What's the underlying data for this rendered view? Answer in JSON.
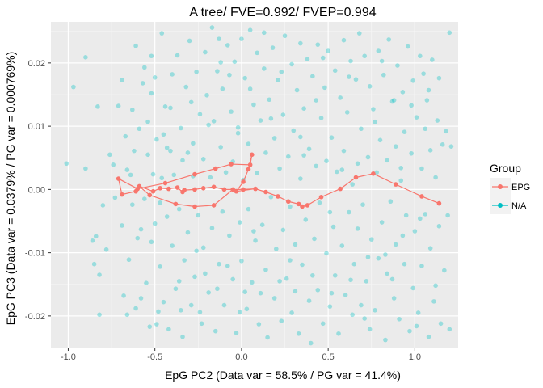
{
  "chart_data": {
    "type": "scatter",
    "title": "A tree/ FVE=0.992/ FVEP=0.994",
    "xlabel": "EpG PC2 (Data var = 58.5% / PG var = 41.4%)",
    "ylabel": "EpG PC3 (Data var = 0.0379% / PG var = 0.000769%)",
    "xlim": [
      -1.1,
      1.25
    ],
    "ylim": [
      -0.025,
      0.0265
    ],
    "x_ticks": [
      -1.0,
      -0.5,
      0.0,
      0.5,
      1.0
    ],
    "x_tick_labels": [
      "-1.0",
      "-0.5",
      "0.0",
      "0.5",
      "1.0"
    ],
    "y_ticks": [
      -0.02,
      -0.01,
      0.0,
      0.01,
      0.02
    ],
    "y_tick_labels": [
      "-0.02",
      "-0.01",
      "0.00",
      "0.01",
      "0.02"
    ],
    "grid": true,
    "legend": {
      "title": "Group",
      "position": "right",
      "entries": [
        {
          "label": "EPG",
          "color": "#F8766D"
        },
        {
          "label": "N/A",
          "color": "#00BFC4"
        }
      ]
    },
    "colors": {
      "EPG": "#F8766D",
      "N/A": "#00BFC4",
      "panel": "#EBEBEB"
    },
    "epg_nodes": [
      [
        -0.71,
        0.0017
      ],
      [
        -0.69,
        -0.0008
      ],
      [
        -0.61,
        -0.0003
      ],
      [
        -0.59,
        0.0005
      ],
      [
        -0.51,
        -0.0003
      ],
      [
        -0.47,
        0.0002
      ],
      [
        -0.42,
        0.0001
      ],
      [
        -0.37,
        0.0003
      ],
      [
        -0.34,
        -0.0004
      ],
      [
        -0.33,
        -0.0001
      ],
      [
        -0.27,
        0.0
      ],
      [
        -0.22,
        0.0002
      ],
      [
        -0.16,
        0.0004
      ],
      [
        -0.1,
        0.0
      ],
      [
        -0.05,
        0.0
      ],
      [
        0.01,
        0.0
      ],
      [
        0.08,
        0.0001
      ],
      [
        0.14,
        -0.0004
      ],
      [
        0.21,
        -0.0011
      ],
      [
        0.27,
        -0.0019
      ],
      [
        0.33,
        -0.0023
      ],
      [
        0.35,
        -0.0027
      ],
      [
        0.38,
        -0.0025
      ],
      [
        0.46,
        -0.0012
      ],
      [
        0.57,
        0.0001
      ],
      [
        0.66,
        0.0019
      ],
      [
        0.76,
        0.0025
      ],
      [
        0.89,
        0.0008
      ],
      [
        1.04,
        -0.0011
      ],
      [
        1.14,
        -0.0022
      ],
      [
        -0.53,
        -0.0009
      ],
      [
        -0.38,
        -0.0023
      ],
      [
        -0.27,
        -0.0027
      ],
      [
        -0.16,
        -0.0025
      ],
      [
        -0.03,
        -0.0003
      ],
      [
        0.01,
        0.0012
      ],
      [
        0.04,
        0.0032
      ],
      [
        0.06,
        0.0055
      ],
      [
        0.05,
        0.0039
      ],
      [
        -0.06,
        0.004
      ],
      [
        -0.15,
        0.0033
      ],
      [
        -0.27,
        0.0024
      ],
      [
        -0.44,
        0.001
      ],
      [
        -0.6,
        0.0001
      ]
    ],
    "epg_edges": [
      [
        0,
        1
      ],
      [
        1,
        2
      ],
      [
        2,
        3
      ],
      [
        3,
        4
      ],
      [
        4,
        5
      ],
      [
        5,
        6
      ],
      [
        6,
        7
      ],
      [
        7,
        8
      ],
      [
        8,
        9
      ],
      [
        9,
        10
      ],
      [
        10,
        11
      ],
      [
        11,
        12
      ],
      [
        12,
        13
      ],
      [
        13,
        14
      ],
      [
        14,
        15
      ],
      [
        15,
        16
      ],
      [
        16,
        17
      ],
      [
        17,
        18
      ],
      [
        18,
        19
      ],
      [
        19,
        20
      ],
      [
        20,
        21
      ],
      [
        21,
        22
      ],
      [
        22,
        23
      ],
      [
        23,
        24
      ],
      [
        24,
        25
      ],
      [
        25,
        26
      ],
      [
        26,
        27
      ],
      [
        27,
        28
      ],
      [
        28,
        29
      ],
      [
        0,
        43
      ],
      [
        43,
        42
      ],
      [
        42,
        41
      ],
      [
        41,
        40
      ],
      [
        40,
        39
      ],
      [
        39,
        38
      ],
      [
        38,
        37
      ],
      [
        37,
        36
      ],
      [
        36,
        35
      ],
      [
        35,
        34
      ],
      [
        34,
        16
      ],
      [
        3,
        30
      ],
      [
        30,
        31
      ],
      [
        31,
        32
      ],
      [
        32,
        33
      ],
      [
        33,
        14
      ]
    ],
    "na_points": [
      [
        -1.01,
        0.0041
      ],
      [
        -0.97,
        0.0162
      ],
      [
        -0.9,
        0.0209
      ],
      [
        -0.9,
        0.0033
      ],
      [
        -0.86,
        -0.0081
      ],
      [
        -0.85,
        -0.0118
      ],
      [
        -0.84,
        -0.0074
      ],
      [
        -0.83,
        0.0131
      ],
      [
        -0.82,
        -0.0198
      ],
      [
        -0.82,
        -0.0135
      ],
      [
        -0.8,
        -0.0025
      ],
      [
        -0.78,
        -0.0095
      ],
      [
        -0.76,
        0.0055
      ],
      [
        -0.74,
        0.0039
      ],
      [
        -0.73,
        -0.0013
      ],
      [
        -0.71,
        0.0132
      ],
      [
        -0.69,
        0.0173
      ],
      [
        -0.69,
        -0.0057
      ],
      [
        -0.68,
        -0.0168
      ],
      [
        -0.67,
        0.0084
      ],
      [
        -0.66,
        -0.0198
      ],
      [
        -0.66,
        0.0031
      ],
      [
        -0.65,
        -0.0111
      ],
      [
        -0.64,
        0.0023
      ],
      [
        -0.63,
        0.0126
      ],
      [
        -0.62,
        0.0061
      ],
      [
        -0.61,
        -0.0188
      ],
      [
        -0.61,
        0.0227
      ],
      [
        -0.6,
        -0.0077
      ],
      [
        -0.59,
        0.0096
      ],
      [
        -0.58,
        -0.0063
      ],
      [
        -0.57,
        0.0168
      ],
      [
        -0.56,
        0.0193
      ],
      [
        -0.56,
        -0.0015
      ],
      [
        -0.55,
        -0.0148
      ],
      [
        -0.54,
        0.0055
      ],
      [
        -0.53,
        -0.0217
      ],
      [
        -0.52,
        0.0211
      ],
      [
        -0.52,
        -0.0083
      ],
      [
        -0.51,
        0.0024
      ],
      [
        -0.5,
        0.0177
      ],
      [
        -0.5,
        -0.0054
      ],
      [
        -0.49,
        0.0079
      ],
      [
        -0.48,
        -0.0193
      ],
      [
        -0.47,
        -0.0122
      ],
      [
        -0.46,
        0.0247
      ],
      [
        -0.46,
        0.0018
      ],
      [
        -0.45,
        -0.0178
      ],
      [
        -0.44,
        0.0131
      ],
      [
        -0.43,
        -0.0043
      ],
      [
        -0.42,
        -0.0221
      ],
      [
        -0.41,
        0.0061
      ],
      [
        -0.4,
        0.0182
      ],
      [
        -0.4,
        -0.0089
      ],
      [
        -0.39,
        0.0023
      ],
      [
        -0.38,
        -0.0157
      ],
      [
        -0.37,
        0.0212
      ],
      [
        -0.36,
        -0.0031
      ],
      [
        -0.35,
        0.0097
      ],
      [
        -0.34,
        -0.0233
      ],
      [
        -0.34,
        0.0046
      ],
      [
        -0.33,
        -0.0112
      ],
      [
        -0.32,
        0.0162
      ],
      [
        -0.31,
        -0.0068
      ],
      [
        -0.3,
        0.0235
      ],
      [
        -0.29,
        -0.0183
      ],
      [
        -0.28,
        0.0073
      ],
      [
        -0.28,
        0.0021
      ],
      [
        -0.27,
        -0.0138
      ],
      [
        -0.26,
        0.0186
      ],
      [
        -0.25,
        -0.0041
      ],
      [
        -0.24,
        0.0119
      ],
      [
        -0.23,
        -0.0212
      ],
      [
        -0.22,
        0.0048
      ],
      [
        -0.22,
        -0.0092
      ],
      [
        -0.21,
        0.0217
      ],
      [
        -0.2,
        0.0149
      ],
      [
        -0.19,
        -0.0163
      ],
      [
        -0.18,
        0.0019
      ],
      [
        -0.17,
        0.0256
      ],
      [
        -0.17,
        -0.0061
      ],
      [
        -0.16,
        0.0108
      ],
      [
        -0.15,
        -0.0224
      ],
      [
        -0.14,
        0.0187
      ],
      [
        -0.13,
        -0.0118
      ],
      [
        -0.12,
        0.0067
      ],
      [
        -0.11,
        -0.0035
      ],
      [
        -0.11,
        0.0159
      ],
      [
        -0.1,
        -0.0183
      ],
      [
        -0.09,
        0.0027
      ],
      [
        -0.08,
        0.0228
      ],
      [
        -0.07,
        -0.0073
      ],
      [
        -0.06,
        0.0123
      ],
      [
        -0.05,
        -0.0142
      ],
      [
        -0.05,
        0.0044
      ],
      [
        -0.04,
        0.0202
      ],
      [
        -0.03,
        -0.0227
      ],
      [
        -0.02,
        0.0089
      ],
      [
        -0.01,
        -0.0052
      ],
      [
        0.0,
        0.0238
      ],
      [
        0.0,
        -0.0113
      ],
      [
        0.01,
        0.0015
      ],
      [
        0.02,
        0.0176
      ],
      [
        0.03,
        -0.0189
      ],
      [
        0.04,
        0.0072
      ],
      [
        0.04,
        -0.0031
      ],
      [
        0.05,
        0.0252
      ],
      [
        0.06,
        -0.0147
      ],
      [
        0.07,
        0.0134
      ],
      [
        0.08,
        -0.0081
      ],
      [
        0.09,
        0.0216
      ],
      [
        0.09,
        0.0026
      ],
      [
        0.1,
        -0.0213
      ],
      [
        0.11,
        0.0109
      ],
      [
        0.12,
        -0.0056
      ],
      [
        0.13,
        0.0191
      ],
      [
        0.14,
        -0.0127
      ],
      [
        0.14,
        0.0058
      ],
      [
        0.15,
        -0.0234
      ],
      [
        0.16,
        0.0142
      ],
      [
        0.17,
        -0.0012
      ],
      [
        0.18,
        0.0224
      ],
      [
        0.19,
        -0.0172
      ],
      [
        0.19,
        0.0081
      ],
      [
        0.2,
        -0.0094
      ],
      [
        0.21,
        0.0173
      ],
      [
        0.22,
        0.0033
      ],
      [
        0.23,
        -0.0208
      ],
      [
        0.24,
        0.0118
      ],
      [
        0.24,
        -0.0064
      ],
      [
        0.25,
        0.0243
      ],
      [
        0.26,
        -0.0141
      ],
      [
        0.27,
        0.0052
      ],
      [
        0.28,
        -0.0027
      ],
      [
        0.29,
        0.0198
      ],
      [
        0.29,
        -0.0195
      ],
      [
        0.3,
        0.0093
      ],
      [
        0.31,
        -0.0087
      ],
      [
        0.32,
        0.0157
      ],
      [
        0.33,
        -0.0228
      ],
      [
        0.34,
        0.0017
      ],
      [
        0.34,
        0.0231
      ],
      [
        0.35,
        -0.0119
      ],
      [
        0.36,
        0.0128
      ],
      [
        0.37,
        -0.0048
      ],
      [
        0.38,
        0.0206
      ],
      [
        0.39,
        -0.0176
      ],
      [
        0.39,
        0.0064
      ],
      [
        0.4,
        -0.0243
      ],
      [
        0.41,
        0.0179
      ],
      [
        0.42,
        -0.0078
      ],
      [
        0.43,
        0.0037
      ],
      [
        0.44,
        -0.0159
      ],
      [
        0.44,
        0.0229
      ],
      [
        0.45,
        -0.0021
      ],
      [
        0.46,
        0.0113
      ],
      [
        0.47,
        -0.0212
      ],
      [
        0.48,
        0.0161
      ],
      [
        0.49,
        -0.0101
      ],
      [
        0.49,
        0.0045
      ],
      [
        0.5,
        0.0219
      ],
      [
        0.51,
        -0.0185
      ],
      [
        0.52,
        0.0082
      ],
      [
        0.53,
        -0.0059
      ],
      [
        0.54,
        0.0188
      ],
      [
        0.54,
        -0.0136
      ],
      [
        0.55,
        0.0028
      ],
      [
        0.56,
        -0.0228
      ],
      [
        0.57,
        0.0145
      ],
      [
        0.58,
        -0.0089
      ],
      [
        0.59,
        0.0236
      ],
      [
        0.59,
        0.0061
      ],
      [
        0.6,
        -0.0167
      ],
      [
        0.61,
        0.0122
      ],
      [
        0.62,
        -0.0036
      ],
      [
        0.63,
        0.0203
      ],
      [
        0.64,
        -0.0198
      ],
      [
        0.64,
        0.0008
      ],
      [
        0.65,
        -0.0118
      ],
      [
        0.66,
        0.0174
      ],
      [
        0.67,
        -0.0062
      ],
      [
        0.68,
        0.0247
      ],
      [
        0.69,
        -0.0183
      ],
      [
        0.69,
        0.0096
      ],
      [
        0.7,
        -0.0024
      ],
      [
        0.71,
        0.0211
      ],
      [
        0.72,
        -0.0145
      ],
      [
        0.73,
        0.0051
      ],
      [
        0.74,
        -0.0221
      ],
      [
        0.74,
        0.0163
      ],
      [
        0.75,
        -0.0079
      ],
      [
        0.76,
        0.0127
      ],
      [
        0.77,
        -0.0191
      ],
      [
        0.78,
        0.0027
      ],
      [
        0.79,
        0.0219
      ],
      [
        0.79,
        -0.0109
      ],
      [
        0.8,
        0.0078
      ],
      [
        0.81,
        -0.0052
      ],
      [
        0.82,
        0.0181
      ],
      [
        0.83,
        -0.0238
      ],
      [
        0.84,
        0.0046
      ],
      [
        0.84,
        -0.0133
      ],
      [
        0.85,
        0.0237
      ],
      [
        0.86,
        -0.0019
      ],
      [
        0.87,
        0.0139
      ],
      [
        0.88,
        -0.0172
      ],
      [
        0.89,
        0.0068
      ],
      [
        0.89,
        -0.0087
      ],
      [
        0.9,
        0.0196
      ],
      [
        0.91,
        -0.0205
      ],
      [
        0.92,
        0.0014
      ],
      [
        0.93,
        0.0154
      ],
      [
        0.94,
        -0.0118
      ],
      [
        0.94,
        0.0091
      ],
      [
        0.95,
        -0.0041
      ],
      [
        0.96,
        0.0226
      ],
      [
        0.97,
        -0.0224
      ],
      [
        0.98,
        0.0057
      ],
      [
        0.99,
        -0.0156
      ],
      [
        0.99,
        0.0172
      ],
      [
        1.0,
        -0.0066
      ],
      [
        1.01,
        0.0114
      ],
      [
        1.02,
        -0.0195
      ],
      [
        1.03,
        0.0211
      ],
      [
        1.04,
        0.0033
      ],
      [
        1.04,
        -0.0121
      ],
      [
        1.05,
        0.0183
      ],
      [
        1.06,
        -0.0039
      ],
      [
        1.07,
        0.0141
      ],
      [
        1.08,
        -0.0233
      ],
      [
        1.09,
        0.0062
      ],
      [
        1.09,
        -0.0093
      ],
      [
        1.1,
        0.0205
      ],
      [
        1.11,
        -0.0177
      ],
      [
        1.12,
        0.0019
      ],
      [
        1.13,
        0.0109
      ],
      [
        1.14,
        -0.0058
      ],
      [
        1.14,
        0.0176
      ],
      [
        1.15,
        -0.0212
      ],
      [
        1.16,
        0.0071
      ],
      [
        1.17,
        -0.0128
      ],
      [
        1.18,
        0.0092
      ],
      [
        1.19,
        -0.0041
      ],
      [
        1.2,
        0.0248
      ],
      [
        1.2,
        -0.0221
      ],
      [
        1.21,
        0.0068
      ],
      [
        -0.63,
        -0.0024
      ],
      [
        -0.54,
        0.0107
      ],
      [
        -0.47,
        -0.0021
      ],
      [
        -0.41,
        0.0129
      ],
      [
        -0.36,
        -0.0145
      ],
      [
        -0.29,
        0.0138
      ],
      [
        -0.24,
        -0.0194
      ],
      [
        -0.19,
        0.0102
      ],
      [
        -0.13,
        0.0238
      ],
      [
        -0.08,
        -0.0121
      ],
      [
        -0.02,
        0.0098
      ],
      [
        0.05,
        0.0159
      ],
      [
        0.11,
        -0.0164
      ],
      [
        0.17,
        0.0112
      ],
      [
        0.23,
        0.0186
      ],
      [
        0.28,
        -0.0112
      ],
      [
        0.34,
        0.0083
      ],
      [
        0.41,
        -0.0136
      ],
      [
        0.47,
        0.0208
      ],
      [
        0.52,
        -0.0164
      ],
      [
        0.58,
        0.0031
      ],
      [
        0.63,
        -0.0143
      ],
      [
        0.71,
        -0.0204
      ],
      [
        0.77,
        0.0107
      ],
      [
        0.83,
        -0.0103
      ],
      [
        0.88,
        0.0141
      ],
      [
        0.93,
        -0.0073
      ],
      [
        0.98,
        0.0133
      ],
      [
        1.03,
        -0.0046
      ],
      [
        1.08,
        0.0157
      ],
      [
        -0.58,
        -0.0172
      ],
      [
        -0.49,
        -0.0213
      ],
      [
        -0.43,
        0.0066
      ],
      [
        -0.31,
        0.0058
      ],
      [
        -0.26,
        -0.0097
      ],
      [
        -0.14,
        -0.0157
      ],
      [
        -0.07,
        0.0181
      ],
      [
        0.02,
        -0.0162
      ],
      [
        0.07,
        -0.0066
      ],
      [
        0.13,
        0.0248
      ],
      [
        0.22,
        -0.0145
      ],
      [
        0.31,
        -0.0161
      ],
      [
        0.36,
        0.0054
      ],
      [
        0.43,
        0.0141
      ],
      [
        0.51,
        -0.0036
      ],
      [
        0.62,
        0.0178
      ],
      [
        0.67,
        0.0041
      ],
      [
        0.73,
        -0.0107
      ],
      [
        0.81,
        0.0203
      ],
      [
        0.87,
        -0.0142
      ],
      [
        0.92,
        0.0034
      ],
      [
        1.01,
        -0.0216
      ],
      [
        1.06,
        0.0096
      ],
      [
        1.12,
        -0.0152
      ],
      [
        -0.52,
        0.0152
      ],
      [
        -0.45,
        0.0087
      ],
      [
        -0.35,
        -0.0191
      ],
      [
        -0.21,
        -0.0133
      ],
      [
        -0.12,
        0.0201
      ],
      [
        -0.01,
        -0.0194
      ]
    ]
  }
}
